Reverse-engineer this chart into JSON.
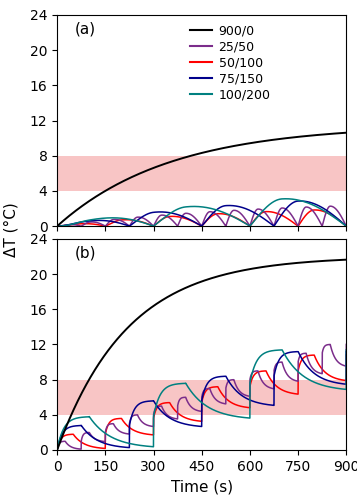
{
  "xlim": [
    0,
    900
  ],
  "ylim": [
    0,
    24
  ],
  "yticks": [
    0,
    4,
    8,
    12,
    16,
    20,
    24
  ],
  "xticks": [
    0,
    150,
    300,
    450,
    600,
    750,
    900
  ],
  "xlabel": "Time (s)",
  "ylabel": "ΔT (°C)",
  "hyperthermia_low": 4,
  "hyperthermia_high": 8,
  "hyperthermia_color": "#f08080",
  "hyperthermia_alpha": 0.45,
  "legend_labels": [
    "900/0",
    "25/50",
    "50/100",
    "75/150",
    "100/200"
  ],
  "line_colors": [
    "black",
    "#7b2d8b",
    "red",
    "#00008b",
    "#008080"
  ],
  "panel_labels": [
    "(a)",
    "(b)"
  ],
  "label_fontsize": 11,
  "tick_fontsize": 10,
  "legend_fontsize": 9,
  "a_black_tau": 350,
  "a_black_max": 11.5,
  "b_black_tau": 220,
  "b_black_max": 22.0
}
